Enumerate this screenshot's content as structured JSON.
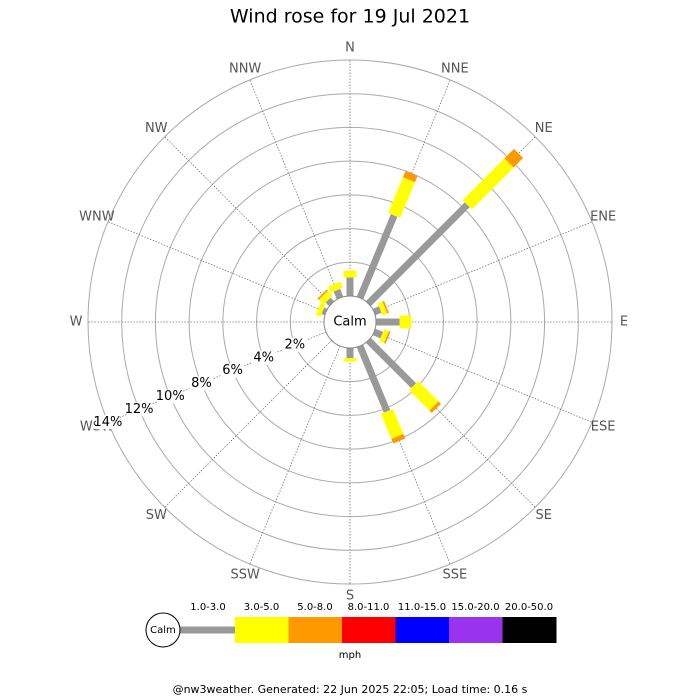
{
  "chart_data": {
    "type": "windrose",
    "title": "Wind rose for 19 Jul 2021",
    "directions": [
      "N",
      "NNE",
      "NE",
      "ENE",
      "E",
      "ESE",
      "SE",
      "SSE",
      "S",
      "SSW",
      "SW",
      "WSW",
      "W",
      "WNW",
      "NW",
      "NNW"
    ],
    "calm_label": "Calm",
    "rlim": [
      0,
      14
    ],
    "rticks": [
      {
        "value": 2,
        "label": "2%"
      },
      {
        "value": 4,
        "label": "4%"
      },
      {
        "value": 6,
        "label": "6%"
      },
      {
        "value": 8,
        "label": "8%"
      },
      {
        "value": 10,
        "label": "10%"
      },
      {
        "value": 12,
        "label": "12%"
      },
      {
        "value": 14,
        "label": "14%"
      }
    ],
    "series": [
      {
        "name": "1.0-3.0",
        "color": "#999999",
        "values": [
          1.1,
          5.3,
          8.3,
          0.4,
          1.4,
          0.5,
          3.8,
          4.2,
          0.6,
          0,
          0,
          0,
          0,
          0.2,
          0.3,
          0.5
        ]
      },
      {
        "name": "3.0-5.0",
        "color": "#ffff00",
        "values": [
          0.4,
          2.3,
          3.5,
          0.3,
          0.7,
          0.3,
          1.7,
          1.6,
          0.2,
          0,
          0,
          0,
          0,
          0.3,
          0.4,
          0.4
        ]
      },
      {
        "name": "5.0-8.0",
        "color": "#ff9900",
        "values": [
          0,
          0.4,
          0.8,
          0.1,
          0,
          0.1,
          0.2,
          0.3,
          0,
          0,
          0,
          0,
          0,
          0,
          0.1,
          0
        ]
      },
      {
        "name": "8.0-11.0",
        "color": "#ff0000",
        "values": [
          0,
          0,
          0,
          0,
          0,
          0,
          0,
          0,
          0,
          0,
          0,
          0,
          0,
          0,
          0,
          0
        ]
      },
      {
        "name": "11.0-15.0",
        "color": "#0000ff",
        "values": [
          0,
          0,
          0,
          0,
          0,
          0,
          0,
          0,
          0,
          0,
          0,
          0,
          0,
          0,
          0,
          0
        ]
      },
      {
        "name": "15.0-20.0",
        "color": "#9933ee",
        "values": [
          0,
          0,
          0,
          0,
          0,
          0,
          0,
          0,
          0,
          0,
          0,
          0,
          0,
          0,
          0,
          0
        ]
      },
      {
        "name": "20.0-50.0",
        "color": "#000000",
        "values": [
          0,
          0,
          0,
          0,
          0,
          0,
          0,
          0,
          0,
          0,
          0,
          0,
          0,
          0,
          0,
          0
        ]
      }
    ],
    "unit": "mph",
    "footer": "@nw3weather. Generated: 22 Jun 2025 22:05; Load time: 0.16 s"
  }
}
